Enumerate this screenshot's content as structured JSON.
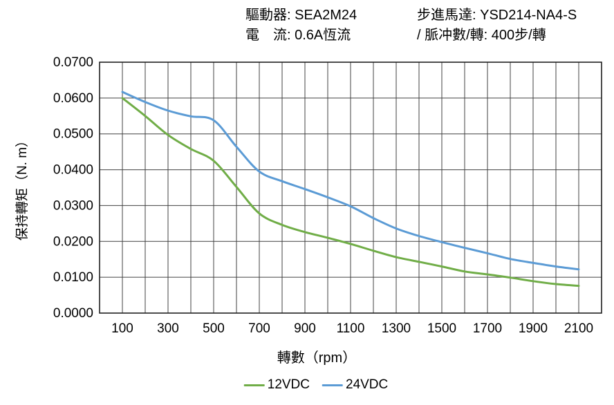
{
  "header": {
    "driver": "驅動器: SEA2M24",
    "current": "電　流: 0.6A恆流",
    "motor": "步進馬達: YSD214-NA4-S",
    "pulses": "/ 脈冲數/轉: 400步/轉"
  },
  "chart_data": {
    "type": "line",
    "title": "",
    "xlabel": "轉數（rpm）",
    "ylabel": "保持轉矩（N. m）",
    "xlim": [
      0,
      2200
    ],
    "ylim": [
      0.0,
      0.07
    ],
    "grid": true,
    "grid_step_x": 100,
    "grid_step_y": 0.01,
    "legend_position": "bottom-center",
    "x": [
      100,
      200,
      300,
      400,
      500,
      600,
      700,
      800,
      900,
      1000,
      1100,
      1200,
      1300,
      1400,
      1500,
      1600,
      1700,
      1800,
      1900,
      2000,
      2100
    ],
    "x_tick_labels": [
      "100",
      "300",
      "500",
      "700",
      "900",
      "1100",
      "1300",
      "1500",
      "1700",
      "1900",
      "2100"
    ],
    "y_tick_labels": [
      "0.0000",
      "0.0100",
      "0.0200",
      "0.0300",
      "0.0400",
      "0.0500",
      "0.0600",
      "0.0700"
    ],
    "series": [
      {
        "name": "12VDC",
        "color": "#70AD47",
        "values": [
          0.06,
          0.055,
          0.0497,
          0.0458,
          0.0425,
          0.0352,
          0.0278,
          0.0246,
          0.0226,
          0.021,
          0.0193,
          0.0174,
          0.0156,
          0.0143,
          0.013,
          0.0116,
          0.0108,
          0.0099,
          0.0089,
          0.0081,
          0.0076
        ]
      },
      {
        "name": "24VDC",
        "color": "#5B9BD5",
        "values": [
          0.0617,
          0.0589,
          0.0565,
          0.0549,
          0.0538,
          0.0464,
          0.0395,
          0.0368,
          0.0346,
          0.0323,
          0.0298,
          0.0265,
          0.0236,
          0.0215,
          0.0198,
          0.0182,
          0.0167,
          0.0151,
          0.014,
          0.013,
          0.0122
        ]
      }
    ]
  },
  "colors": {
    "background": "#ffffff",
    "grid": "#404040",
    "border": "#1f1f1f",
    "text": "#000000"
  }
}
